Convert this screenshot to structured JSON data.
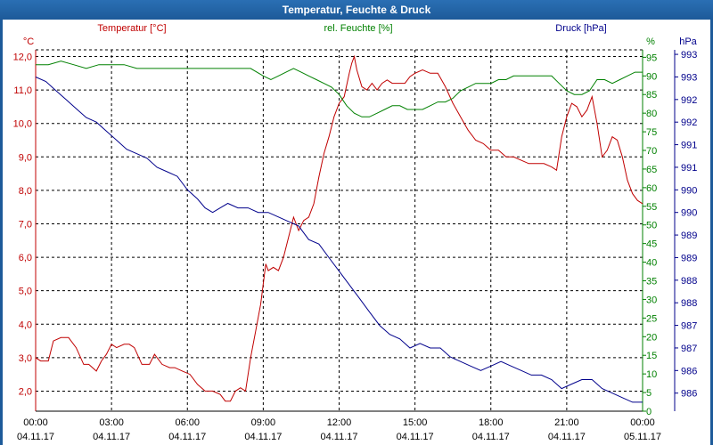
{
  "window": {
    "title": "Temperatur, Feuchte & Druck"
  },
  "colors": {
    "temperature": "#c00000",
    "humidity": "#008000",
    "pressure": "#00008b",
    "frame": "#1d5a99"
  },
  "chart_data": {
    "type": "line",
    "title": "Temperatur, Feuchte & Druck",
    "grid": true,
    "x_axis": {
      "ticks": [
        {
          "time": "00:00",
          "date": "04.11.17",
          "h": 0
        },
        {
          "time": "03:00",
          "date": "04.11.17",
          "h": 3
        },
        {
          "time": "06:00",
          "date": "04.11.17",
          "h": 6
        },
        {
          "time": "09:00",
          "date": "04.11.17",
          "h": 9
        },
        {
          "time": "12:00",
          "date": "04.11.17",
          "h": 12
        },
        {
          "time": "15:00",
          "date": "04.11.17",
          "h": 15
        },
        {
          "time": "18:00",
          "date": "04.11.17",
          "h": 18
        },
        {
          "time": "21:00",
          "date": "04.11.17",
          "h": 21
        },
        {
          "time": "00:00",
          "date": "05.11.17",
          "h": 24
        }
      ],
      "range": [
        0,
        24
      ]
    },
    "axes": {
      "temperature": {
        "label": "Temperatur [°C]",
        "unit": "°C",
        "range": [
          1.4,
          12.2
        ],
        "ticks": [
          "2,0",
          "3,0",
          "4,0",
          "5,0",
          "6,0",
          "7,0",
          "8,0",
          "9,0",
          "10,0",
          "11,0",
          "12,0"
        ]
      },
      "humidity": {
        "label": "rel. Feuchte [%]",
        "unit": "%",
        "range": [
          0,
          97
        ],
        "ticks": [
          "0",
          "5",
          "10",
          "15",
          "20",
          "25",
          "30",
          "35",
          "40",
          "45",
          "50",
          "55",
          "60",
          "65",
          "70",
          "75",
          "80",
          "85",
          "90",
          "95"
        ]
      },
      "pressure": {
        "label": "Druck [hPa]",
        "unit": "hPa",
        "range": [
          985.6,
          993.6
        ],
        "ticks": [
          "986",
          "986",
          "987",
          "987",
          "988",
          "988",
          "989",
          "989",
          "990",
          "990",
          "991",
          "991",
          "992",
          "992",
          "993",
          "993"
        ]
      }
    },
    "series": [
      {
        "name": "Temperatur [°C]",
        "axis": "temperature",
        "points": [
          [
            0,
            3.0
          ],
          [
            0.2,
            2.9
          ],
          [
            0.5,
            2.9
          ],
          [
            0.7,
            3.5
          ],
          [
            1.0,
            3.6
          ],
          [
            1.3,
            3.6
          ],
          [
            1.6,
            3.3
          ],
          [
            1.9,
            2.8
          ],
          [
            2.1,
            2.8
          ],
          [
            2.4,
            2.6
          ],
          [
            2.6,
            2.9
          ],
          [
            2.8,
            3.1
          ],
          [
            3.0,
            3.4
          ],
          [
            3.2,
            3.3
          ],
          [
            3.5,
            3.4
          ],
          [
            3.7,
            3.4
          ],
          [
            3.9,
            3.3
          ],
          [
            4.2,
            2.8
          ],
          [
            4.5,
            2.8
          ],
          [
            4.7,
            3.1
          ],
          [
            5.0,
            2.8
          ],
          [
            5.3,
            2.7
          ],
          [
            5.5,
            2.7
          ],
          [
            5.8,
            2.6
          ],
          [
            6.1,
            2.5
          ],
          [
            6.4,
            2.2
          ],
          [
            6.7,
            2.0
          ],
          [
            7.0,
            2.0
          ],
          [
            7.3,
            1.9
          ],
          [
            7.5,
            1.7
          ],
          [
            7.7,
            1.7
          ],
          [
            7.9,
            2.0
          ],
          [
            8.1,
            2.1
          ],
          [
            8.3,
            2.0
          ],
          [
            8.5,
            3.0
          ],
          [
            8.7,
            3.8
          ],
          [
            8.9,
            4.6
          ],
          [
            9.1,
            5.8
          ],
          [
            9.2,
            5.6
          ],
          [
            9.4,
            5.7
          ],
          [
            9.6,
            5.6
          ],
          [
            9.8,
            6.0
          ],
          [
            10.0,
            6.6
          ],
          [
            10.2,
            7.2
          ],
          [
            10.4,
            6.8
          ],
          [
            10.6,
            7.1
          ],
          [
            10.8,
            7.2
          ],
          [
            11.0,
            7.6
          ],
          [
            11.2,
            8.4
          ],
          [
            11.4,
            9.1
          ],
          [
            11.6,
            9.6
          ],
          [
            11.8,
            10.2
          ],
          [
            12.0,
            10.6
          ],
          [
            12.2,
            10.8
          ],
          [
            12.4,
            11.5
          ],
          [
            12.5,
            11.8
          ],
          [
            12.6,
            12.0
          ],
          [
            12.7,
            11.6
          ],
          [
            12.9,
            11.1
          ],
          [
            13.1,
            11.0
          ],
          [
            13.3,
            11.2
          ],
          [
            13.5,
            11.0
          ],
          [
            13.7,
            11.2
          ],
          [
            13.9,
            11.3
          ],
          [
            14.1,
            11.2
          ],
          [
            14.3,
            11.2
          ],
          [
            14.6,
            11.2
          ],
          [
            14.8,
            11.4
          ],
          [
            15.0,
            11.5
          ],
          [
            15.3,
            11.6
          ],
          [
            15.6,
            11.5
          ],
          [
            15.9,
            11.5
          ],
          [
            16.2,
            11.1
          ],
          [
            16.5,
            10.6
          ],
          [
            16.8,
            10.2
          ],
          [
            17.1,
            9.8
          ],
          [
            17.4,
            9.5
          ],
          [
            17.7,
            9.4
          ],
          [
            18.0,
            9.2
          ],
          [
            18.3,
            9.2
          ],
          [
            18.6,
            9.0
          ],
          [
            18.9,
            9.0
          ],
          [
            19.2,
            8.9
          ],
          [
            19.5,
            8.8
          ],
          [
            19.8,
            8.8
          ],
          [
            20.1,
            8.8
          ],
          [
            20.4,
            8.7
          ],
          [
            20.6,
            8.6
          ],
          [
            20.8,
            9.6
          ],
          [
            21.0,
            10.2
          ],
          [
            21.2,
            10.6
          ],
          [
            21.4,
            10.5
          ],
          [
            21.6,
            10.2
          ],
          [
            21.8,
            10.4
          ],
          [
            22.0,
            10.8
          ],
          [
            22.2,
            10.0
          ],
          [
            22.4,
            9.0
          ],
          [
            22.6,
            9.2
          ],
          [
            22.8,
            9.6
          ],
          [
            23.0,
            9.5
          ],
          [
            23.2,
            9.0
          ],
          [
            23.4,
            8.3
          ],
          [
            23.6,
            7.9
          ],
          [
            23.8,
            7.7
          ],
          [
            24.0,
            7.6
          ]
        ]
      },
      {
        "name": "rel. Feuchte [%]",
        "axis": "humidity",
        "points": [
          [
            0,
            93
          ],
          [
            0.5,
            93
          ],
          [
            1.0,
            94
          ],
          [
            1.5,
            93
          ],
          [
            2.0,
            92
          ],
          [
            2.5,
            93
          ],
          [
            3.0,
            93
          ],
          [
            3.5,
            93
          ],
          [
            4.0,
            92
          ],
          [
            4.5,
            92
          ],
          [
            5.0,
            92
          ],
          [
            5.5,
            92
          ],
          [
            6.0,
            92
          ],
          [
            6.5,
            92
          ],
          [
            7.0,
            92
          ],
          [
            7.5,
            92
          ],
          [
            8.0,
            92
          ],
          [
            8.5,
            92
          ],
          [
            9.0,
            90
          ],
          [
            9.3,
            89
          ],
          [
            9.6,
            90
          ],
          [
            9.9,
            91
          ],
          [
            10.2,
            92
          ],
          [
            10.5,
            91
          ],
          [
            10.8,
            90
          ],
          [
            11.1,
            89
          ],
          [
            11.4,
            88
          ],
          [
            11.7,
            87
          ],
          [
            12.0,
            85
          ],
          [
            12.3,
            82
          ],
          [
            12.6,
            80
          ],
          [
            12.9,
            79
          ],
          [
            13.2,
            79
          ],
          [
            13.5,
            80
          ],
          [
            13.8,
            81
          ],
          [
            14.1,
            82
          ],
          [
            14.4,
            82
          ],
          [
            14.7,
            81
          ],
          [
            15.0,
            81
          ],
          [
            15.3,
            81
          ],
          [
            15.6,
            82
          ],
          [
            15.9,
            83
          ],
          [
            16.2,
            83
          ],
          [
            16.5,
            84
          ],
          [
            16.8,
            86
          ],
          [
            17.1,
            87
          ],
          [
            17.4,
            88
          ],
          [
            17.7,
            88
          ],
          [
            18.0,
            88
          ],
          [
            18.3,
            89
          ],
          [
            18.6,
            89
          ],
          [
            18.9,
            90
          ],
          [
            19.2,
            90
          ],
          [
            19.5,
            90
          ],
          [
            19.8,
            90
          ],
          [
            20.1,
            90
          ],
          [
            20.4,
            90
          ],
          [
            20.7,
            88
          ],
          [
            21.0,
            86
          ],
          [
            21.3,
            85
          ],
          [
            21.6,
            85
          ],
          [
            21.9,
            86
          ],
          [
            22.2,
            89
          ],
          [
            22.5,
            89
          ],
          [
            22.8,
            88
          ],
          [
            23.1,
            89
          ],
          [
            23.4,
            90
          ],
          [
            23.7,
            91
          ],
          [
            24.0,
            91
          ]
        ]
      },
      {
        "name": "Druck [hPa]",
        "axis": "pressure",
        "points": [
          [
            0,
            993.0
          ],
          [
            0.4,
            992.9
          ],
          [
            0.8,
            992.7
          ],
          [
            1.2,
            992.5
          ],
          [
            1.6,
            992.3
          ],
          [
            2.0,
            992.1
          ],
          [
            2.4,
            992.0
          ],
          [
            2.8,
            991.8
          ],
          [
            3.2,
            991.6
          ],
          [
            3.6,
            991.4
          ],
          [
            4.0,
            991.3
          ],
          [
            4.4,
            991.2
          ],
          [
            4.8,
            991.0
          ],
          [
            5.2,
            990.9
          ],
          [
            5.6,
            990.8
          ],
          [
            6.0,
            990.5
          ],
          [
            6.4,
            990.3
          ],
          [
            6.7,
            990.1
          ],
          [
            7.0,
            990.0
          ],
          [
            7.3,
            990.1
          ],
          [
            7.6,
            990.2
          ],
          [
            8.0,
            990.1
          ],
          [
            8.4,
            990.1
          ],
          [
            8.8,
            990.0
          ],
          [
            9.2,
            990.0
          ],
          [
            9.6,
            989.9
          ],
          [
            10.0,
            989.8
          ],
          [
            10.4,
            989.7
          ],
          [
            10.8,
            989.4
          ],
          [
            11.2,
            989.3
          ],
          [
            11.6,
            989.0
          ],
          [
            12.0,
            988.7
          ],
          [
            12.4,
            988.4
          ],
          [
            12.8,
            988.1
          ],
          [
            13.2,
            987.8
          ],
          [
            13.6,
            987.5
          ],
          [
            14.0,
            987.3
          ],
          [
            14.4,
            987.2
          ],
          [
            14.8,
            987.0
          ],
          [
            15.2,
            987.1
          ],
          [
            15.6,
            987.0
          ],
          [
            16.0,
            987.0
          ],
          [
            16.4,
            986.8
          ],
          [
            16.8,
            986.7
          ],
          [
            17.2,
            986.6
          ],
          [
            17.6,
            986.5
          ],
          [
            18.0,
            986.6
          ],
          [
            18.4,
            986.7
          ],
          [
            18.8,
            986.6
          ],
          [
            19.2,
            986.5
          ],
          [
            19.6,
            986.4
          ],
          [
            20.0,
            986.4
          ],
          [
            20.4,
            986.3
          ],
          [
            20.8,
            986.1
          ],
          [
            21.2,
            986.2
          ],
          [
            21.6,
            986.3
          ],
          [
            22.0,
            986.3
          ],
          [
            22.4,
            986.1
          ],
          [
            22.8,
            986.0
          ],
          [
            23.2,
            985.9
          ],
          [
            23.6,
            985.8
          ],
          [
            24.0,
            985.8
          ]
        ]
      }
    ]
  }
}
